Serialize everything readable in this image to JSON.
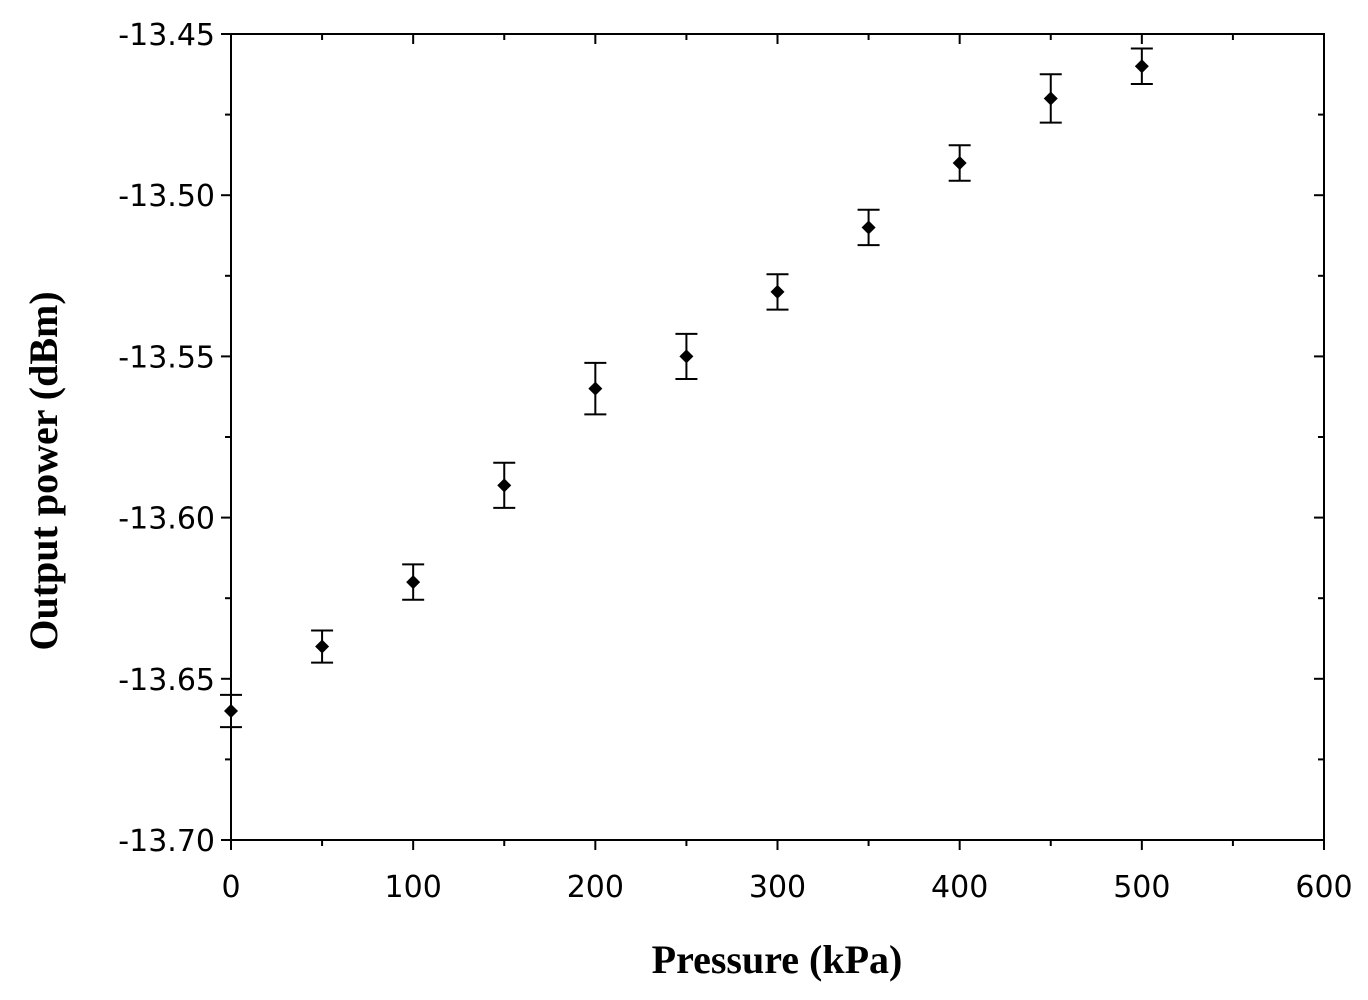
{
  "chart_data": {
    "type": "scatter",
    "title": "",
    "xlabel": "Pressure (kPa)",
    "ylabel": "Output power (dBm)",
    "xlim": [
      0,
      600
    ],
    "ylim": [
      -13.7,
      -13.45
    ],
    "x_ticks": [
      0,
      100,
      200,
      300,
      400,
      500,
      600
    ],
    "x_tick_labels": [
      "0",
      "100",
      "200",
      "300",
      "400",
      "500",
      "600"
    ],
    "y_ticks": [
      -13.7,
      -13.65,
      -13.6,
      -13.55,
      -13.5,
      -13.45
    ],
    "y_tick_labels": [
      "-13.70",
      "-13.65",
      "-13.60",
      "-13.55",
      "-13.50",
      "-13.45"
    ],
    "grid": false,
    "marker": "diamond",
    "series": [
      {
        "x": [
          0,
          50,
          100,
          150,
          200,
          250,
          300,
          350,
          400,
          450,
          500
        ],
        "y": [
          -13.66,
          -13.64,
          -13.62,
          -13.59,
          -13.56,
          -13.55,
          -13.53,
          -13.51,
          -13.49,
          -13.47,
          -13.46
        ],
        "error": [
          0.005,
          0.005,
          0.0055,
          0.007,
          0.008,
          0.007,
          0.0055,
          0.0055,
          0.0055,
          0.0075,
          0.0055
        ]
      }
    ]
  }
}
